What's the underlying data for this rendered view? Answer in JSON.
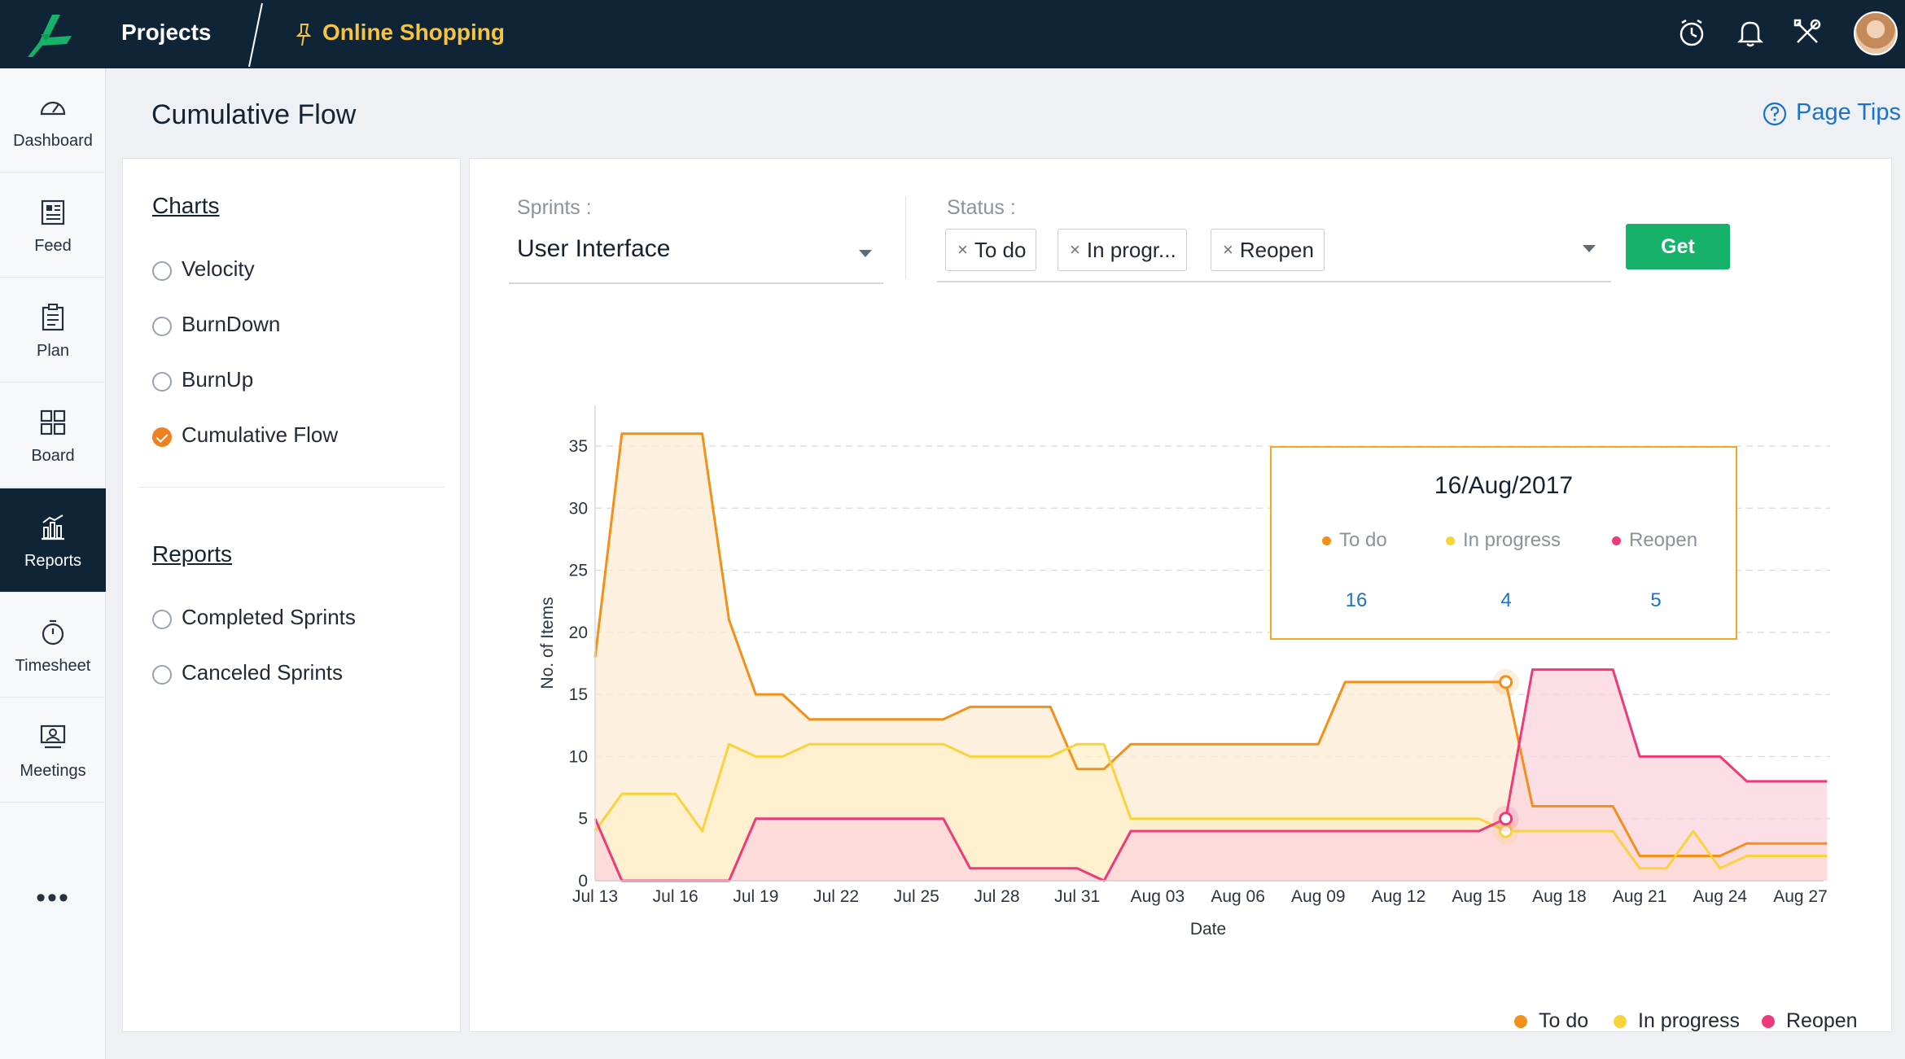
{
  "topbar": {
    "projects_label": "Projects",
    "project_name": "Online Shopping",
    "icons": [
      "timer-icon",
      "bell-icon",
      "tools-icon"
    ],
    "colors": {
      "bar": "#0f2436",
      "project_name": "#f5c542"
    }
  },
  "nav": {
    "items": [
      {
        "label": "Dashboard",
        "icon": "dashboard-icon"
      },
      {
        "label": "Feed",
        "icon": "feed-icon"
      },
      {
        "label": "Plan",
        "icon": "plan-icon"
      },
      {
        "label": "Board",
        "icon": "board-icon"
      },
      {
        "label": "Reports",
        "icon": "reports-icon",
        "active": true
      },
      {
        "label": "Timesheet",
        "icon": "timesheet-icon"
      },
      {
        "label": "Meetings",
        "icon": "meetings-icon"
      }
    ],
    "more": "•••"
  },
  "header": {
    "title": "Cumulative Flow",
    "page_tips": "Page Tips"
  },
  "sidebar": {
    "charts_title": "Charts",
    "charts": [
      {
        "label": "Velocity",
        "checked": false
      },
      {
        "label": "BurnDown",
        "checked": false
      },
      {
        "label": "BurnUp",
        "checked": false
      },
      {
        "label": "Cumulative Flow",
        "checked": true
      }
    ],
    "reports_title": "Reports",
    "reports": [
      {
        "label": "Completed Sprints",
        "checked": false
      },
      {
        "label": "Canceled Sprints",
        "checked": false
      }
    ]
  },
  "filters": {
    "sprints_label": "Sprints :",
    "sprint_value": "User Interface",
    "status_label": "Status :",
    "status_chips": [
      "To do",
      "In progr...",
      "Reopen"
    ],
    "chip_remove": "×",
    "get_label": "Get",
    "colors": {
      "get": "#17b26a"
    }
  },
  "tooltip": {
    "date": "16/Aug/2017",
    "series": [
      {
        "name": "To do",
        "value": "16"
      },
      {
        "name": "In progress",
        "value": "4"
      },
      {
        "name": "Reopen",
        "value": "5"
      }
    ]
  },
  "chart_data": {
    "type": "area",
    "xlabel": "Date",
    "ylabel": "No. of Items",
    "ylim": [
      0,
      35
    ],
    "y_ticks": [
      0,
      5,
      10,
      15,
      20,
      25,
      30,
      35
    ],
    "x_tick_labels": [
      "Jul 13",
      "Jul 16",
      "Jul 19",
      "Jul 22",
      "Jul 25",
      "Jul 28",
      "Jul 31",
      "Aug 03",
      "Aug 06",
      "Aug 09",
      "Aug 12",
      "Aug 15",
      "Aug 18",
      "Aug 21",
      "Aug 24",
      "Aug 27"
    ],
    "x_start": "2017-07-13",
    "grid": "horizontal-dashed",
    "legend_position": "bottom-right",
    "series": [
      {
        "name": "To do",
        "color": "#f39019",
        "fill": "#fdebd4",
        "points": [
          [
            "2017-07-13",
            18
          ],
          [
            "2017-07-14",
            36
          ],
          [
            "2017-07-15",
            36
          ],
          [
            "2017-07-16",
            36
          ],
          [
            "2017-07-17",
            36
          ],
          [
            "2017-07-18",
            21
          ],
          [
            "2017-07-19",
            15
          ],
          [
            "2017-07-20",
            15
          ],
          [
            "2017-07-21",
            13
          ],
          [
            "2017-07-22",
            13
          ],
          [
            "2017-07-23",
            13
          ],
          [
            "2017-07-24",
            13
          ],
          [
            "2017-07-25",
            13
          ],
          [
            "2017-07-26",
            13
          ],
          [
            "2017-07-27",
            14
          ],
          [
            "2017-07-28",
            14
          ],
          [
            "2017-07-29",
            14
          ],
          [
            "2017-07-30",
            14
          ],
          [
            "2017-07-31",
            9
          ],
          [
            "2017-08-01",
            9
          ],
          [
            "2017-08-02",
            11
          ],
          [
            "2017-08-03",
            11
          ],
          [
            "2017-08-04",
            11
          ],
          [
            "2017-08-05",
            11
          ],
          [
            "2017-08-06",
            11
          ],
          [
            "2017-08-07",
            11
          ],
          [
            "2017-08-08",
            11
          ],
          [
            "2017-08-09",
            11
          ],
          [
            "2017-08-10",
            16
          ],
          [
            "2017-08-11",
            16
          ],
          [
            "2017-08-12",
            16
          ],
          [
            "2017-08-13",
            16
          ],
          [
            "2017-08-14",
            16
          ],
          [
            "2017-08-15",
            16
          ],
          [
            "2017-08-16",
            16
          ],
          [
            "2017-08-17",
            6
          ],
          [
            "2017-08-18",
            6
          ],
          [
            "2017-08-19",
            6
          ],
          [
            "2017-08-20",
            6
          ],
          [
            "2017-08-21",
            2
          ],
          [
            "2017-08-22",
            2
          ],
          [
            "2017-08-23",
            2
          ],
          [
            "2017-08-24",
            2
          ],
          [
            "2017-08-25",
            3
          ],
          [
            "2017-08-26",
            3
          ],
          [
            "2017-08-27",
            3
          ],
          [
            "2017-08-28",
            3
          ]
        ]
      },
      {
        "name": "In progress",
        "color": "#f8d33c",
        "fill": "#fdf0c9",
        "points": [
          [
            "2017-07-13",
            4
          ],
          [
            "2017-07-14",
            7
          ],
          [
            "2017-07-15",
            7
          ],
          [
            "2017-07-16",
            7
          ],
          [
            "2017-07-17",
            4
          ],
          [
            "2017-07-18",
            11
          ],
          [
            "2017-07-19",
            10
          ],
          [
            "2017-07-20",
            10
          ],
          [
            "2017-07-21",
            11
          ],
          [
            "2017-07-22",
            11
          ],
          [
            "2017-07-23",
            11
          ],
          [
            "2017-07-24",
            11
          ],
          [
            "2017-07-25",
            11
          ],
          [
            "2017-07-26",
            11
          ],
          [
            "2017-07-27",
            10
          ],
          [
            "2017-07-28",
            10
          ],
          [
            "2017-07-29",
            10
          ],
          [
            "2017-07-30",
            10
          ],
          [
            "2017-07-31",
            11
          ],
          [
            "2017-08-01",
            11
          ],
          [
            "2017-08-02",
            5
          ],
          [
            "2017-08-03",
            5
          ],
          [
            "2017-08-04",
            5
          ],
          [
            "2017-08-05",
            5
          ],
          [
            "2017-08-06",
            5
          ],
          [
            "2017-08-07",
            5
          ],
          [
            "2017-08-08",
            5
          ],
          [
            "2017-08-09",
            5
          ],
          [
            "2017-08-10",
            5
          ],
          [
            "2017-08-11",
            5
          ],
          [
            "2017-08-12",
            5
          ],
          [
            "2017-08-13",
            5
          ],
          [
            "2017-08-14",
            5
          ],
          [
            "2017-08-15",
            5
          ],
          [
            "2017-08-16",
            4
          ],
          [
            "2017-08-17",
            4
          ],
          [
            "2017-08-18",
            4
          ],
          [
            "2017-08-19",
            4
          ],
          [
            "2017-08-20",
            4
          ],
          [
            "2017-08-21",
            1
          ],
          [
            "2017-08-22",
            1
          ],
          [
            "2017-08-23",
            4
          ],
          [
            "2017-08-24",
            1
          ],
          [
            "2017-08-25",
            2
          ],
          [
            "2017-08-26",
            2
          ],
          [
            "2017-08-27",
            2
          ],
          [
            "2017-08-28",
            2
          ]
        ]
      },
      {
        "name": "Reopen",
        "color": "#ee3a7a",
        "fill": "#fbd4dd",
        "points": [
          [
            "2017-07-13",
            5
          ],
          [
            "2017-07-14",
            0
          ],
          [
            "2017-07-15",
            0
          ],
          [
            "2017-07-16",
            0
          ],
          [
            "2017-07-17",
            0
          ],
          [
            "2017-07-18",
            0
          ],
          [
            "2017-07-19",
            5
          ],
          [
            "2017-07-20",
            5
          ],
          [
            "2017-07-21",
            5
          ],
          [
            "2017-07-22",
            5
          ],
          [
            "2017-07-23",
            5
          ],
          [
            "2017-07-24",
            5
          ],
          [
            "2017-07-25",
            5
          ],
          [
            "2017-07-26",
            5
          ],
          [
            "2017-07-27",
            1
          ],
          [
            "2017-07-28",
            1
          ],
          [
            "2017-07-29",
            1
          ],
          [
            "2017-07-30",
            1
          ],
          [
            "2017-07-31",
            1
          ],
          [
            "2017-08-01",
            0
          ],
          [
            "2017-08-02",
            4
          ],
          [
            "2017-08-03",
            4
          ],
          [
            "2017-08-04",
            4
          ],
          [
            "2017-08-05",
            4
          ],
          [
            "2017-08-06",
            4
          ],
          [
            "2017-08-07",
            4
          ],
          [
            "2017-08-08",
            4
          ],
          [
            "2017-08-09",
            4
          ],
          [
            "2017-08-10",
            4
          ],
          [
            "2017-08-11",
            4
          ],
          [
            "2017-08-12",
            4
          ],
          [
            "2017-08-13",
            4
          ],
          [
            "2017-08-14",
            4
          ],
          [
            "2017-08-15",
            4
          ],
          [
            "2017-08-16",
            5
          ],
          [
            "2017-08-17",
            17
          ],
          [
            "2017-08-18",
            17
          ],
          [
            "2017-08-19",
            17
          ],
          [
            "2017-08-20",
            17
          ],
          [
            "2017-08-21",
            10
          ],
          [
            "2017-08-22",
            10
          ],
          [
            "2017-08-23",
            10
          ],
          [
            "2017-08-24",
            10
          ],
          [
            "2017-08-25",
            8
          ],
          [
            "2017-08-26",
            8
          ],
          [
            "2017-08-27",
            8
          ],
          [
            "2017-08-28",
            8
          ]
        ]
      }
    ],
    "highlight_date": "2017-08-16"
  }
}
